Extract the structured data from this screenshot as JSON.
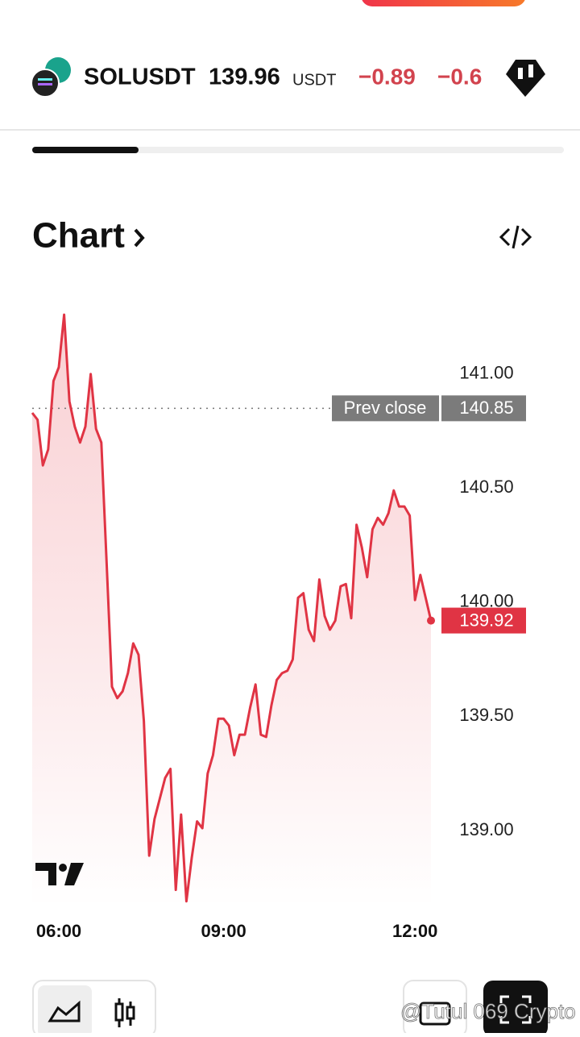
{
  "header": {
    "symbol": "SOLUSDT",
    "price": "139.96",
    "quote": "USDT",
    "change": "−0.89",
    "change_percent": "−0.6"
  },
  "section_title": "Chart",
  "watermark": "@Tutul 069 Crypto",
  "chart_data": {
    "type": "line",
    "color": "#e03444",
    "categories": [
      null,
      null,
      null,
      null,
      null,
      "06:00",
      null,
      null,
      null,
      null,
      null,
      null,
      null,
      null,
      null,
      null,
      null,
      null,
      null,
      null,
      null,
      null,
      null,
      null,
      null,
      null,
      null,
      null,
      null,
      null,
      null,
      null,
      null,
      null,
      null,
      null,
      "09:00",
      null,
      null,
      null,
      null,
      null,
      null,
      null,
      null,
      null,
      null,
      null,
      null,
      null,
      null,
      null,
      null,
      null,
      null,
      null,
      null,
      null,
      null,
      null,
      null,
      null,
      null,
      null,
      null,
      null,
      null,
      null,
      null,
      null,
      null,
      null,
      "12:00",
      null,
      null,
      null
    ],
    "values": [
      140.83,
      140.8,
      140.6,
      140.67,
      140.97,
      141.03,
      141.26,
      140.88,
      140.77,
      140.7,
      140.77,
      141.0,
      140.76,
      140.7,
      140.17,
      139.63,
      139.58,
      139.61,
      139.69,
      139.82,
      139.77,
      139.48,
      138.89,
      139.05,
      139.14,
      139.23,
      139.27,
      138.74,
      139.07,
      138.69,
      138.88,
      139.04,
      139.01,
      139.25,
      139.33,
      139.49,
      139.49,
      139.46,
      139.33,
      139.42,
      139.42,
      139.54,
      139.64,
      139.42,
      139.41,
      139.55,
      139.66,
      139.69,
      139.7,
      139.75,
      140.02,
      140.04,
      139.88,
      139.83,
      140.1,
      139.94,
      139.88,
      139.92,
      140.07,
      140.08,
      139.93,
      140.34,
      140.24,
      140.11,
      140.32,
      140.37,
      140.34,
      140.39,
      140.49,
      140.42,
      140.42,
      140.38,
      140.01,
      140.12,
      140.02,
      139.92
    ],
    "ylim": [
      138.65,
      141.3
    ],
    "yticks": [
      {
        "value": 139,
        "label": "139.00"
      },
      {
        "value": 139.5,
        "label": "139.50"
      },
      {
        "value": 140,
        "label": "140.00"
      },
      {
        "value": 140.5,
        "label": "140.50"
      },
      {
        "value": 141,
        "label": "141.00"
      }
    ],
    "reference_line": {
      "label": "Prev close",
      "value": 140.85
    }
  }
}
